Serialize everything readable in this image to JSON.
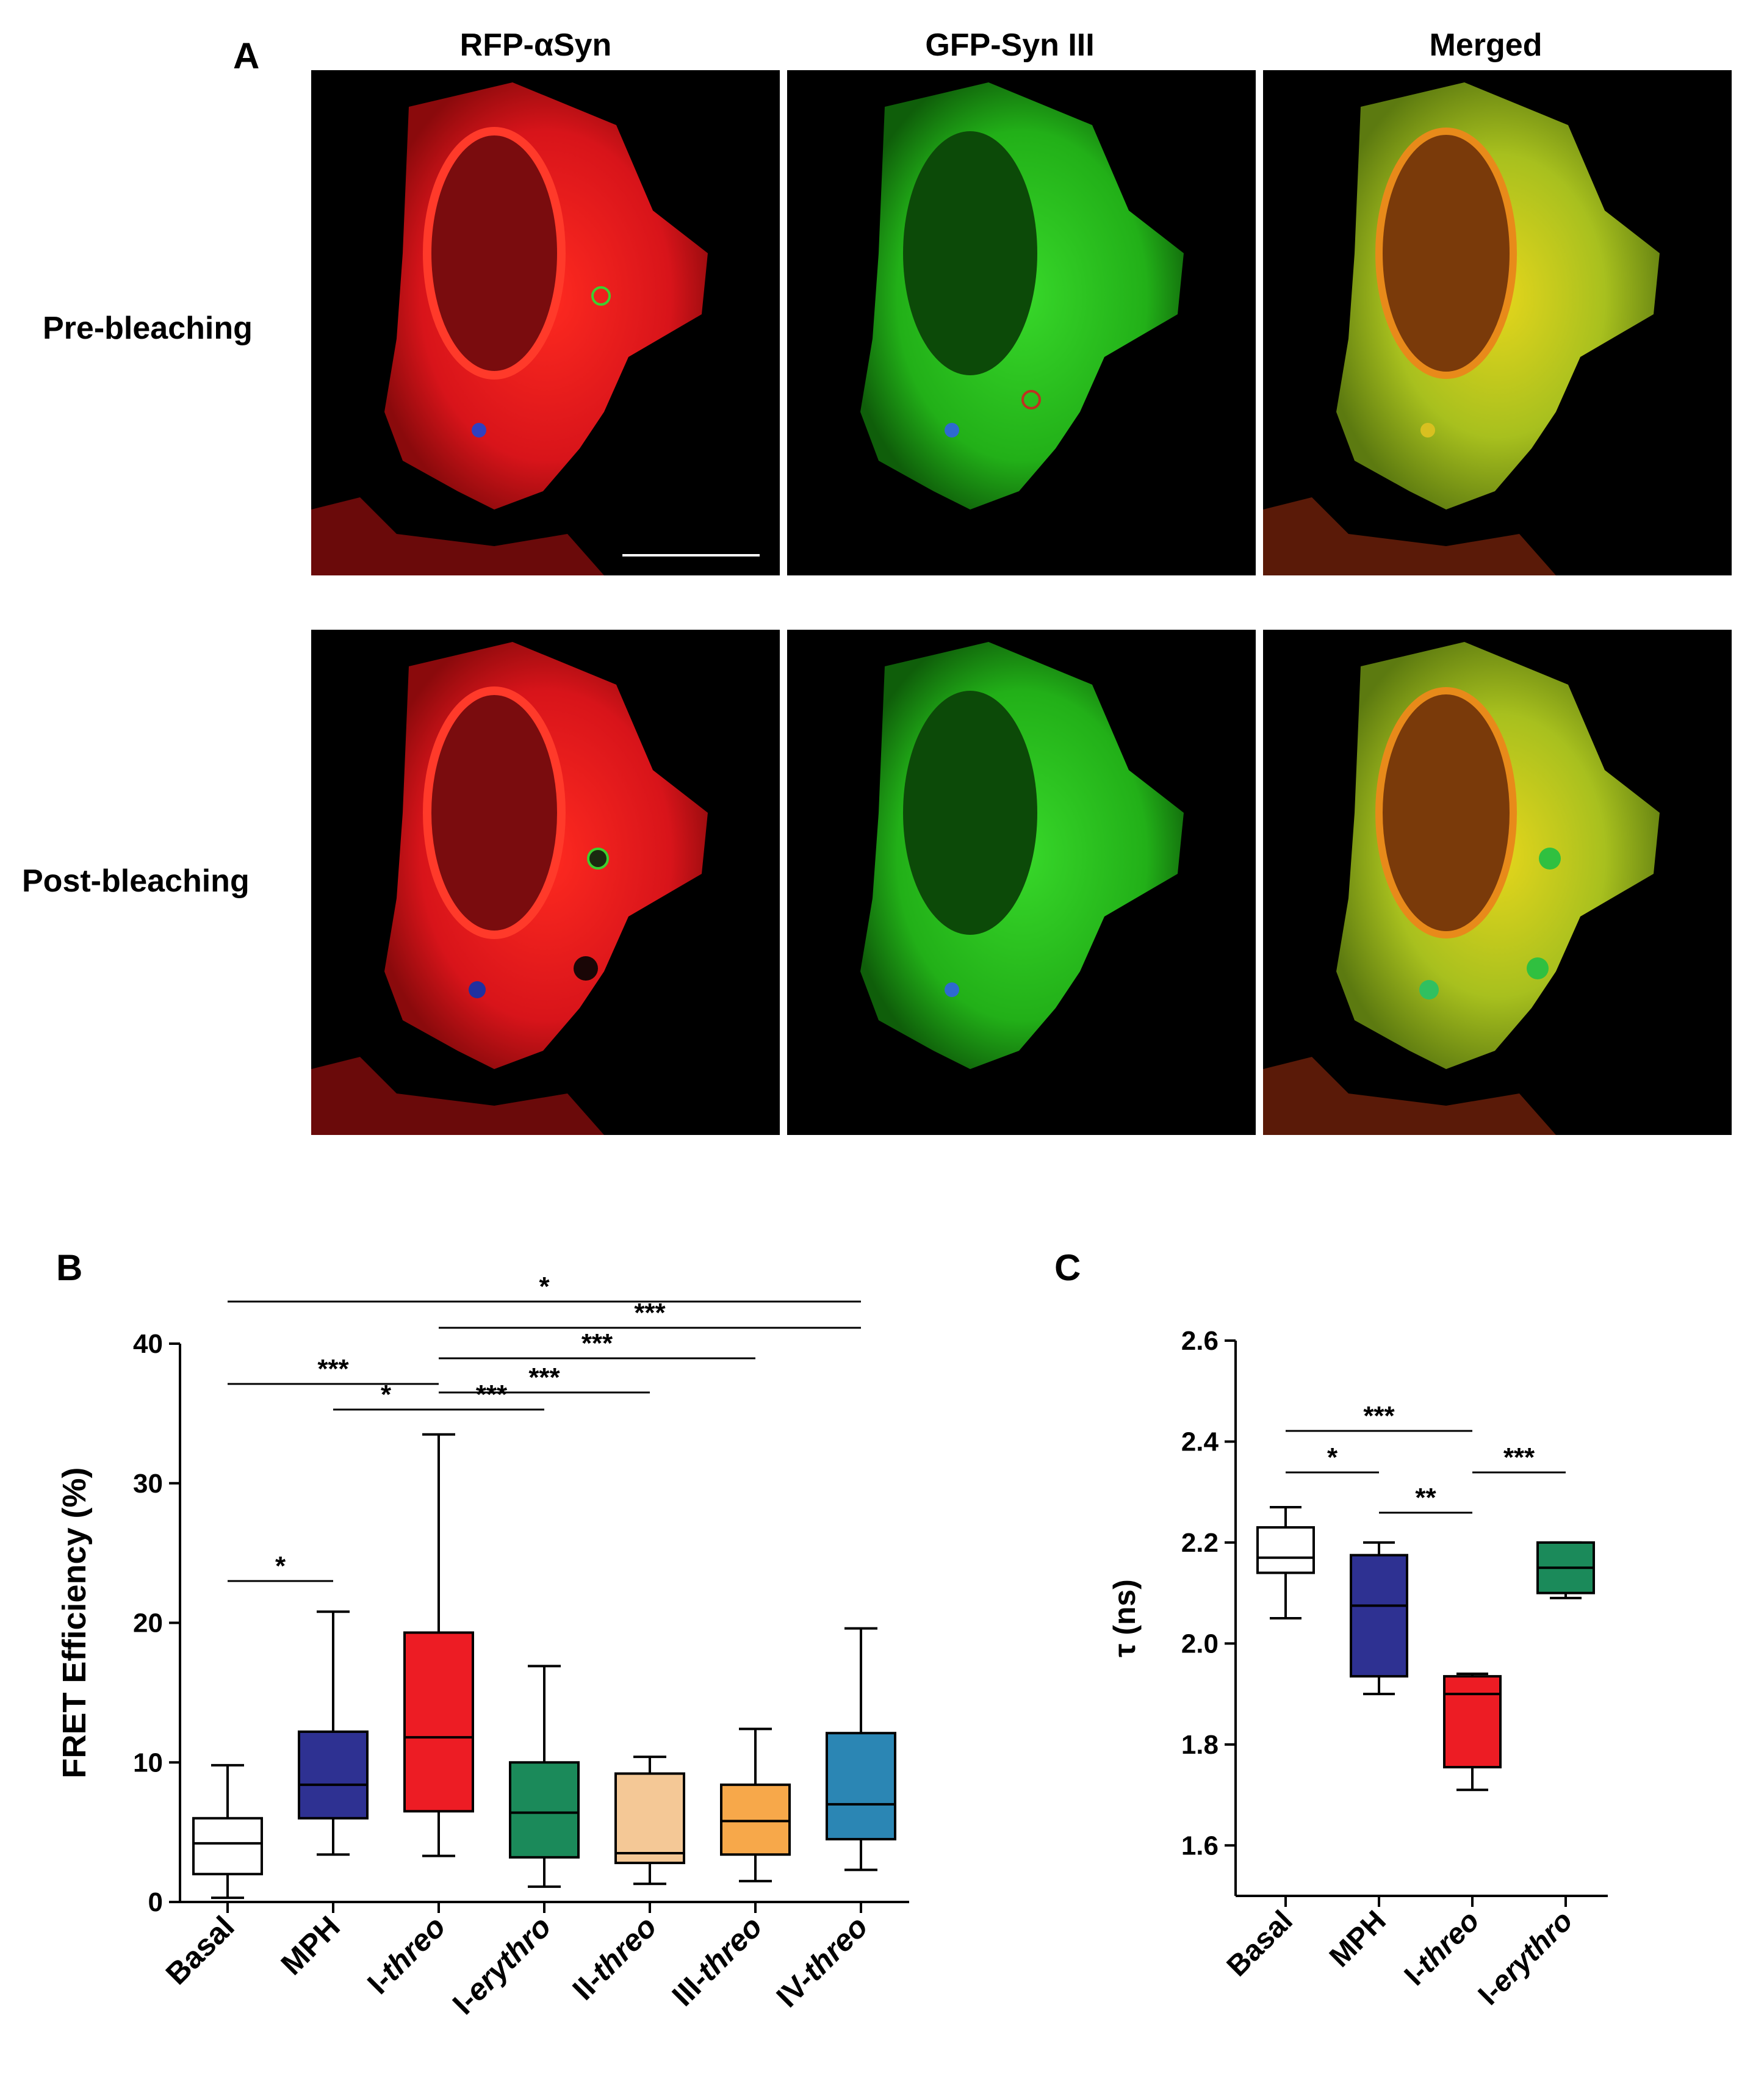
{
  "panels": {
    "a": "A",
    "b": "B",
    "c": "C"
  },
  "microscopy": {
    "columns": [
      "RFP-αSyn",
      "GFP-Syn III",
      "Merged"
    ],
    "rows": [
      "Pre-bleaching",
      "Post-bleaching"
    ],
    "colors": {
      "rfp": "#e8141c",
      "gfp": "#2ec21e",
      "merged": "#c9c816"
    }
  },
  "chart_data": [
    {
      "id": "B",
      "type": "box",
      "ylabel": "FRET Efficiency (%)",
      "ylim": [
        0,
        40
      ],
      "yticks": [
        0,
        10,
        20,
        30,
        40
      ],
      "categories": [
        {
          "label": "Basal",
          "italic_part": ""
        },
        {
          "label": "MPH",
          "italic_part": ""
        },
        {
          "label": "I-threo",
          "prefix": "I-",
          "italic": "threo"
        },
        {
          "label": "I-erythro",
          "prefix": "I-",
          "italic": "erythro"
        },
        {
          "label": "II-threo",
          "prefix": "II-",
          "italic": "threo"
        },
        {
          "label": "III-threo",
          "prefix": "III-",
          "italic": "threo"
        },
        {
          "label": "IV-threo",
          "prefix": "IV-",
          "italic": "threo"
        }
      ],
      "boxes": [
        {
          "min": 0.3,
          "q1": 2.0,
          "median": 4.2,
          "q3": 6.0,
          "max": 9.8,
          "color": "#ffffff"
        },
        {
          "min": 3.4,
          "q1": 6.0,
          "median": 8.4,
          "q3": 12.2,
          "max": 20.8,
          "color": "#2e3192"
        },
        {
          "min": 3.3,
          "q1": 6.5,
          "median": 11.8,
          "q3": 19.3,
          "max": 33.5,
          "color": "#ed1c24"
        },
        {
          "min": 1.1,
          "q1": 3.2,
          "median": 6.4,
          "q3": 10.0,
          "max": 16.9,
          "color": "#1b8a5a"
        },
        {
          "min": 1.3,
          "q1": 2.8,
          "median": 3.5,
          "q3": 9.2,
          "max": 10.4,
          "color": "#f4c896"
        },
        {
          "min": 1.5,
          "q1": 3.4,
          "median": 5.8,
          "q3": 8.4,
          "max": 12.4,
          "color": "#f7a84a"
        },
        {
          "min": 2.3,
          "q1": 4.5,
          "median": 7.0,
          "q3": 12.1,
          "max": 19.6,
          "color": "#2b86b4"
        }
      ],
      "significance": [
        {
          "from": 0,
          "to": 6,
          "label": "*"
        },
        {
          "from": 2,
          "to": 6,
          "label": "***"
        },
        {
          "from": 2,
          "to": 5,
          "label": "***"
        },
        {
          "from": 0,
          "to": 2,
          "label": "***"
        },
        {
          "from": 2,
          "to": 4,
          "label": "***"
        },
        {
          "from": 1,
          "to": 2,
          "label": "*"
        },
        {
          "from": 2,
          "to": 3,
          "label": "***"
        },
        {
          "from": 0,
          "to": 1,
          "label": "*"
        }
      ]
    },
    {
      "id": "C",
      "type": "box",
      "ylabel": "τ (ns)",
      "ylim": [
        1.5,
        2.6
      ],
      "yticks": [
        "1.6",
        "1.8",
        "2.0",
        "2.2",
        "2.4",
        "2.6"
      ],
      "categories": [
        {
          "label": "Basal"
        },
        {
          "label": "MPH"
        },
        {
          "label": "I-threo",
          "prefix": "I-",
          "italic": "threo"
        },
        {
          "label": "I-erythro",
          "prefix": "I-",
          "italic": "erythro"
        }
      ],
      "boxes": [
        {
          "min": 2.05,
          "q1": 2.14,
          "median": 2.17,
          "q3": 2.23,
          "max": 2.27,
          "color": "#ffffff"
        },
        {
          "min": 1.9,
          "q1": 1.935,
          "median": 2.075,
          "q3": 2.175,
          "max": 2.2,
          "color": "#2e3192"
        },
        {
          "min": 1.71,
          "q1": 1.755,
          "median": 1.9,
          "q3": 1.935,
          "max": 1.94,
          "color": "#ed1c24"
        },
        {
          "min": 2.09,
          "q1": 2.1,
          "median": 2.15,
          "q3": 2.2,
          "max": 2.2,
          "color": "#1b8a5a"
        }
      ],
      "significance": [
        {
          "from": 0,
          "to": 2,
          "label": "***"
        },
        {
          "from": 0,
          "to": 1,
          "label": "*"
        },
        {
          "from": 1,
          "to": 2,
          "label": "**"
        },
        {
          "from": 2,
          "to": 3,
          "label": "***"
        }
      ]
    }
  ]
}
